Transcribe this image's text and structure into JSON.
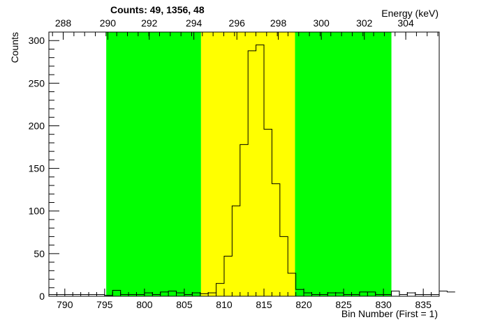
{
  "chart_data": {
    "type": "histogram",
    "title": "Counts:   49,   1356,   48",
    "xlabel": "Bin Number (First = 1)",
    "ylabel": "Counts",
    "top_axis_label": "Energy (keV)",
    "xlim": [
      788,
      837
    ],
    "ylim": [
      0,
      310
    ],
    "x_ticks": [
      790,
      795,
      800,
      805,
      810,
      815,
      820,
      825,
      830,
      835
    ],
    "y_ticks": [
      0,
      50,
      100,
      150,
      200,
      250,
      300
    ],
    "top_ticks": [
      {
        "label": "288",
        "bin": 789.8
      },
      {
        "label": "290",
        "bin": 795.4
      },
      {
        "label": "292",
        "bin": 800.6
      },
      {
        "label": "294",
        "bin": 806.2
      },
      {
        "label": "296",
        "bin": 811.6
      },
      {
        "label": "298",
        "bin": 816.8
      },
      {
        "label": "300",
        "bin": 822.2
      },
      {
        "label": "302",
        "bin": 827.6
      },
      {
        "label": "304",
        "bin": 832.8
      }
    ],
    "regions": [
      {
        "name": "background-left",
        "from": 795.2,
        "to": 807.1,
        "color": "#00ff00"
      },
      {
        "name": "peak",
        "from": 807.1,
        "to": 818.9,
        "color": "#ffff00"
      },
      {
        "name": "background-right",
        "from": 818.9,
        "to": 831.0,
        "color": "#00ff00"
      }
    ],
    "bins": {
      "start": 788,
      "width": 1,
      "values": [
        2,
        2,
        2,
        2,
        2,
        2,
        2,
        1,
        7,
        2,
        2,
        2,
        4,
        2,
        5,
        6,
        4,
        2,
        4,
        3,
        4,
        15,
        47,
        106,
        178,
        288,
        295,
        196,
        132,
        70,
        27,
        8,
        4,
        2,
        2,
        4,
        4,
        2,
        2,
        5,
        5,
        2,
        2,
        6,
        2,
        4,
        2,
        2,
        2,
        6,
        5
      ]
    },
    "colors": {
      "line": "#000000",
      "background": "#ffffff"
    }
  }
}
